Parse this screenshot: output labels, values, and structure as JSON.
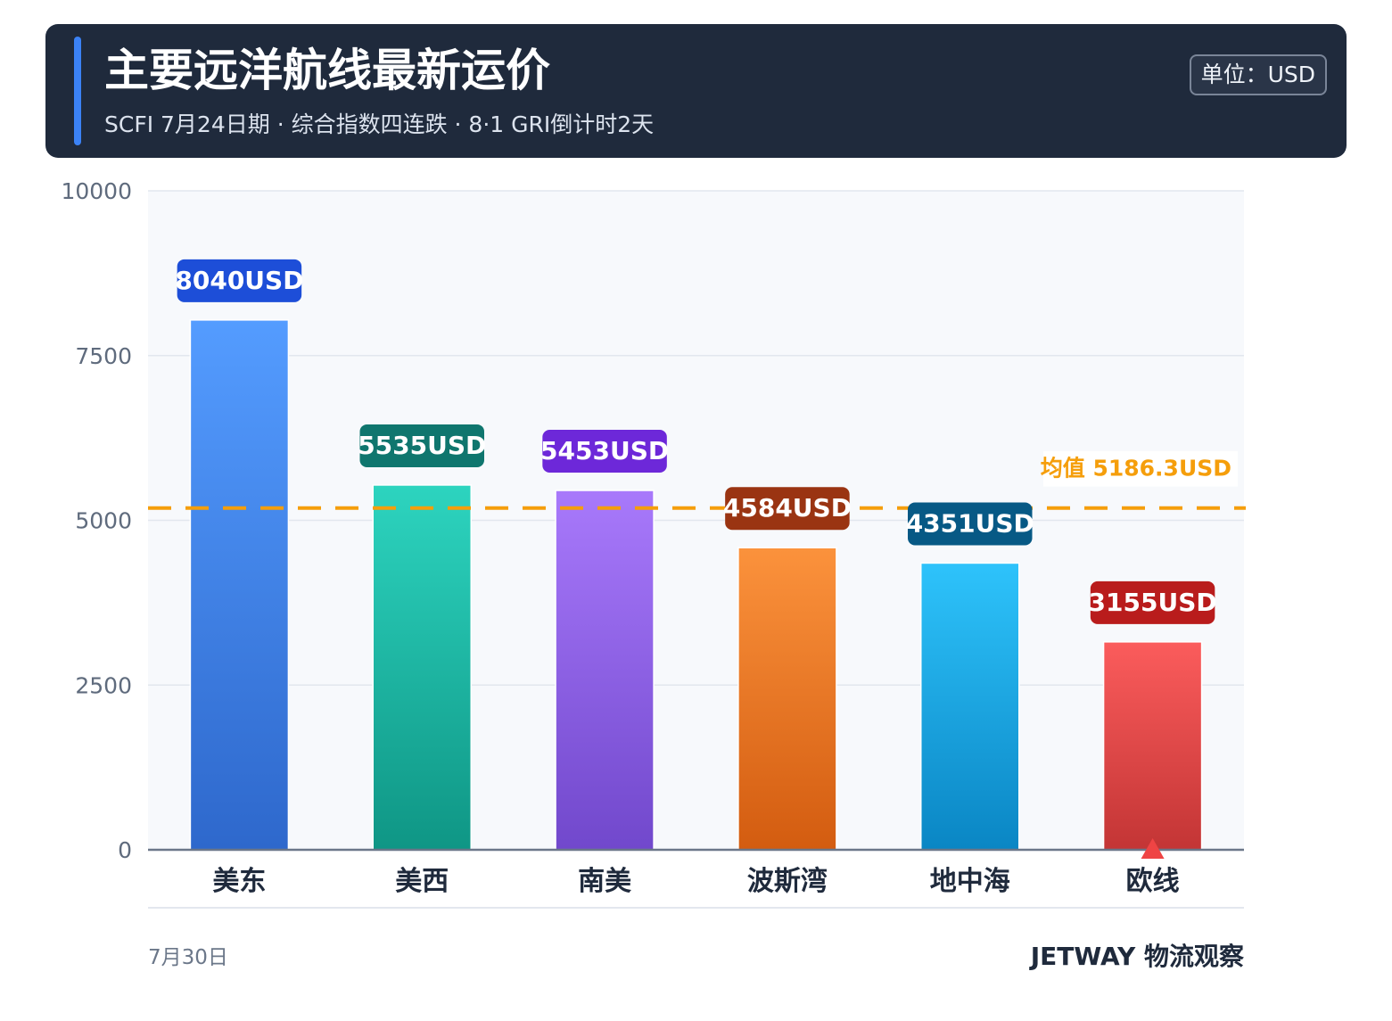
{
  "header": {
    "title": "主要远洋航线最新运价",
    "subtitle": "SCFI 7月24日期 · 综合指数四连跌 · 8·1 GRI倒计时2天",
    "unit_badge": "单位：USD",
    "accent_color": "#3b82f6"
  },
  "footer": {
    "date": "7月30日",
    "brand": "JETWAY 物流观察"
  },
  "chart_data": {
    "type": "bar",
    "categories": [
      "美东",
      "美西",
      "南美",
      "波斯湾",
      "地中海",
      "欧线"
    ],
    "values": [
      8040,
      5535,
      5453,
      4584,
      4351,
      3155
    ],
    "value_labels": [
      "8040USD",
      "5535USD",
      "5453USD",
      "4584USD",
      "4351USD",
      "3155USD"
    ],
    "y_ticks": [
      "0",
      "2500",
      "5000",
      "7500",
      "10000"
    ],
    "ylim": [
      0,
      10000
    ],
    "grid": true,
    "average": {
      "value": 5186.3,
      "label": "均值 5186.3USD",
      "color": "#f59e0b"
    },
    "colors": [
      {
        "top": "#549cff",
        "bottom": "#2e68cc",
        "label_bg": "#1d4ed8"
      },
      {
        "top": "#2dd4bf",
        "bottom": "#0f9685",
        "label_bg": "#0f766e"
      },
      {
        "top": "#a879fb",
        "bottom": "#7148cc",
        "label_bg": "#6d28d9"
      },
      {
        "top": "#fb923c",
        "bottom": "#d35c10",
        "label_bg": "#9a3412"
      },
      {
        "top": "#2ec3fb",
        "bottom": "#0a86c4",
        "label_bg": "#075985"
      },
      {
        "top": "#fb5c5c",
        "bottom": "#c33535",
        "label_bg": "#b91c1c"
      }
    ],
    "markers": [
      {
        "category": "欧线",
        "shape": "triangle-up",
        "color": "#ef4444"
      }
    ]
  }
}
